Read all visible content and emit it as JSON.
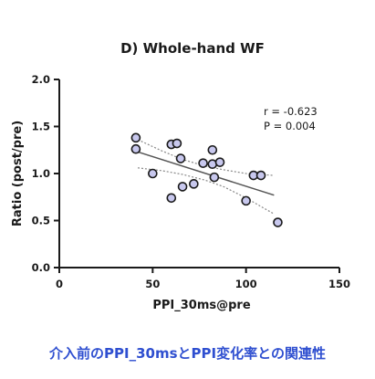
{
  "chart_data": {
    "type": "scatter",
    "title": "D) Whole-hand WF",
    "xlabel": "PPI_30ms@pre",
    "ylabel": "Ratio (post/pre)",
    "xlim": [
      0,
      150
    ],
    "ylim": [
      0.0,
      2.0
    ],
    "x_ticks": [
      {
        "value": 0,
        "label": "0"
      },
      {
        "value": 50,
        "label": "50"
      },
      {
        "value": 100,
        "label": "100"
      },
      {
        "value": 150,
        "label": "150"
      }
    ],
    "y_ticks": [
      {
        "value": 0.0,
        "label": "0.0"
      },
      {
        "value": 0.5,
        "label": "0.5"
      },
      {
        "value": 1.0,
        "label": "1.0"
      },
      {
        "value": 1.5,
        "label": "1.5"
      },
      {
        "value": 2.0,
        "label": "2.0"
      }
    ],
    "grid": false,
    "legend": "none",
    "points": [
      {
        "x": 41,
        "y": 1.38
      },
      {
        "x": 41,
        "y": 1.26
      },
      {
        "x": 50,
        "y": 1.0
      },
      {
        "x": 60,
        "y": 1.31
      },
      {
        "x": 63,
        "y": 1.32
      },
      {
        "x": 65,
        "y": 1.16
      },
      {
        "x": 60,
        "y": 0.74
      },
      {
        "x": 66,
        "y": 0.86
      },
      {
        "x": 72,
        "y": 0.89
      },
      {
        "x": 77,
        "y": 1.11
      },
      {
        "x": 82,
        "y": 1.25
      },
      {
        "x": 82,
        "y": 1.1
      },
      {
        "x": 83,
        "y": 0.96
      },
      {
        "x": 86,
        "y": 1.12
      },
      {
        "x": 100,
        "y": 0.71
      },
      {
        "x": 104,
        "y": 0.98
      },
      {
        "x": 108,
        "y": 0.98
      },
      {
        "x": 117,
        "y": 0.48
      }
    ],
    "regression": {
      "x_start": 42,
      "x_end": 115,
      "y_start": 1.23,
      "y_end": 0.77
    },
    "confidence_band": {
      "upper": [
        [
          42,
          1.36
        ],
        [
          55,
          1.24
        ],
        [
          66,
          1.15
        ],
        [
          78,
          1.08
        ],
        [
          88,
          1.04
        ],
        [
          100,
          1.0
        ],
        [
          115,
          0.98
        ]
      ],
      "lower": [
        [
          42,
          1.06
        ],
        [
          55,
          1.03
        ],
        [
          66,
          0.99
        ],
        [
          78,
          0.93
        ],
        [
          88,
          0.86
        ],
        [
          100,
          0.74
        ],
        [
          115,
          0.57
        ]
      ]
    },
    "annotations": [
      "r = -0.623",
      "P = 0.004"
    ],
    "colors": {
      "point_fill": "#c8c8ee",
      "point_stroke": "#1a1a1a",
      "line": "#555555",
      "band": "#888888",
      "caption": "#2f4fd0"
    }
  },
  "caption": "介入前のPPI_30msとPPI変化率との関連性"
}
